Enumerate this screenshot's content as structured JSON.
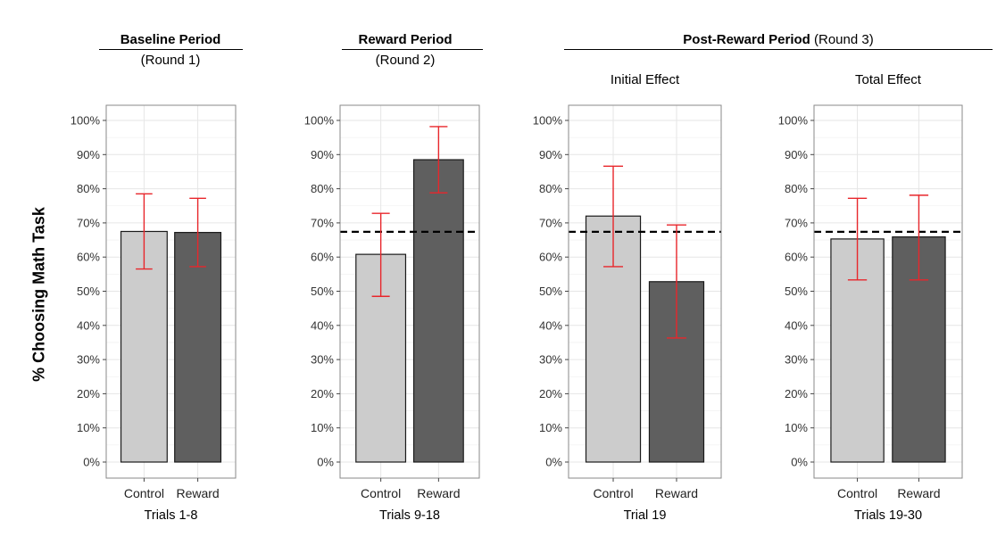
{
  "headers": {
    "baseline": {
      "bold": "Baseline Period",
      "sub": "(Round 1)"
    },
    "reward": {
      "bold": "Reward Period",
      "sub": "(Round 2)"
    },
    "post": {
      "bold": "Post-Reward Period",
      "rest": " (Round 3)"
    }
  },
  "y_axis_label": "% Choosing Math Task",
  "chart_data": [
    {
      "type": "bar",
      "title": "",
      "xlabel": "Trials 1-8",
      "categories": [
        "Control",
        "Reward"
      ],
      "values": [
        67.5,
        67.2
      ],
      "error_low": [
        56.5,
        57.2
      ],
      "error_high": [
        78.5,
        77.2
      ],
      "reference_line": null,
      "ylim": [
        0,
        100
      ],
      "yticks": [
        "0%",
        "10%",
        "20%",
        "30%",
        "40%",
        "50%",
        "60%",
        "70%",
        "80%",
        "90%",
        "100%"
      ],
      "bar_colors": [
        "#cccccc",
        "#5f5f5f"
      ],
      "error_color": "#e8262b",
      "grid": true
    },
    {
      "type": "bar",
      "title": "",
      "xlabel": "Trials 9-18",
      "categories": [
        "Control",
        "Reward"
      ],
      "values": [
        60.8,
        88.5
      ],
      "error_low": [
        48.5,
        78.8
      ],
      "error_high": [
        72.8,
        98.2
      ],
      "reference_line": 67.4,
      "ylim": [
        0,
        100
      ],
      "yticks": [
        "0%",
        "10%",
        "20%",
        "30%",
        "40%",
        "50%",
        "60%",
        "70%",
        "80%",
        "90%",
        "100%"
      ],
      "bar_colors": [
        "#cccccc",
        "#5f5f5f"
      ],
      "error_color": "#e8262b",
      "grid": true
    },
    {
      "type": "bar",
      "title": "Initial Effect",
      "xlabel": "Trial 19",
      "categories": [
        "Control",
        "Reward"
      ],
      "values": [
        72.0,
        52.8
      ],
      "error_low": [
        57.2,
        36.3
      ],
      "error_high": [
        86.6,
        69.4
      ],
      "reference_line": 67.4,
      "ylim": [
        0,
        100
      ],
      "yticks": [
        "0%",
        "10%",
        "20%",
        "30%",
        "40%",
        "50%",
        "60%",
        "70%",
        "80%",
        "90%",
        "100%"
      ],
      "bar_colors": [
        "#cccccc",
        "#5f5f5f"
      ],
      "error_color": "#e8262b",
      "grid": true
    },
    {
      "type": "bar",
      "title": "Total Effect",
      "xlabel": "Trials 19-30",
      "categories": [
        "Control",
        "Reward"
      ],
      "values": [
        65.3,
        65.9
      ],
      "error_low": [
        53.3,
        53.3
      ],
      "error_high": [
        77.2,
        78.1
      ],
      "reference_line": 67.4,
      "ylim": [
        0,
        100
      ],
      "yticks": [
        "0%",
        "10%",
        "20%",
        "30%",
        "40%",
        "50%",
        "60%",
        "70%",
        "80%",
        "90%",
        "100%"
      ],
      "bar_colors": [
        "#cccccc",
        "#5f5f5f"
      ],
      "error_color": "#e8262b",
      "grid": true
    }
  ]
}
